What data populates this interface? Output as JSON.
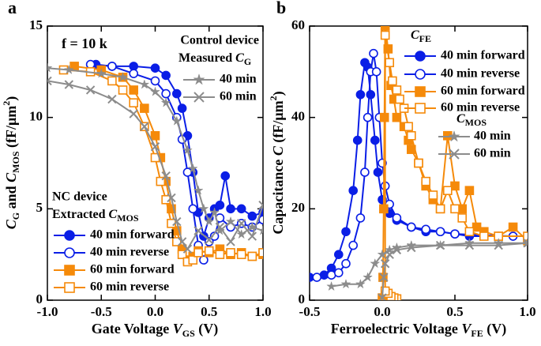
{
  "chart_data": [
    {
      "type": "line",
      "panel_label": "a",
      "x_label": [
        "Gate Voltage ",
        "V",
        "GS",
        " (V)"
      ],
      "y_label": [
        "C",
        "G",
        " and ",
        "C",
        "MOS",
        " (fF/μm",
        "2",
        ")"
      ],
      "annotation": "f = 10 k",
      "xlim": [
        -1.0,
        1.0
      ],
      "ylim": [
        0,
        15
      ],
      "xticks": [
        {
          "value": -1.0,
          "label": "-1.0"
        },
        -0.5,
        {
          "value": 0.0,
          "label": "0.0"
        },
        0.5,
        {
          "value": 1.0,
          "label": "1.0"
        }
      ],
      "yticks": [
        0,
        5,
        10,
        15
      ],
      "groups": [
        {
          "heading": [
            "NC device"
          ],
          "subheading": [
            "Extracted ",
            "C",
            "MOS"
          ],
          "series": [
            {
              "name": "40 min forward",
              "color": "#0a1ee6",
              "marker": "circle",
              "filled": true,
              "x": [
                -0.55,
                -0.4,
                -0.2,
                0.0,
                0.1,
                0.2,
                0.25,
                0.3,
                0.35,
                0.4,
                0.45,
                0.5,
                0.55,
                0.6,
                0.65,
                0.7,
                0.8,
                0.9,
                1.0
              ],
              "values": [
                12.9,
                12.8,
                12.8,
                12.7,
                12.3,
                11.3,
                10.5,
                9.0,
                7.0,
                4.8,
                3.5,
                4.5,
                5.0,
                5.2,
                6.8,
                5.0,
                5.0,
                4.6,
                4.8
              ]
            },
            {
              "name": "40 min reverse",
              "color": "#0a1ee6",
              "marker": "circle",
              "filled": false,
              "x": [
                -0.6,
                -0.4,
                -0.2,
                0.0,
                0.1,
                0.2,
                0.25,
                0.3,
                0.35,
                0.4,
                0.45,
                0.5,
                0.55,
                0.6,
                0.7,
                0.8,
                0.9,
                1.0
              ],
              "values": [
                12.9,
                12.8,
                12.4,
                12.0,
                11.3,
                10.0,
                8.8,
                7.0,
                5.0,
                3.0,
                2.2,
                3.2,
                3.5,
                4.5,
                4.0,
                4.2,
                4.0,
                4.4
              ]
            },
            {
              "name": "60 min forward",
              "color": "#f58a0a",
              "marker": "square",
              "filled": true,
              "x": [
                -0.75,
                -0.5,
                -0.3,
                -0.2,
                -0.1,
                0.0,
                0.05,
                0.1,
                0.15,
                0.2,
                0.25,
                0.3,
                0.35,
                0.4,
                0.5,
                0.6,
                0.7,
                0.8,
                0.9,
                1.0
              ],
              "values": [
                12.8,
                12.6,
                12.2,
                11.5,
                10.5,
                9.0,
                7.8,
                6.5,
                5.0,
                3.8,
                2.8,
                2.2,
                2.4,
                2.7,
                2.6,
                2.8,
                2.5,
                2.6,
                2.4,
                2.5
              ]
            },
            {
              "name": "60 min reverse",
              "color": "#f58a0a",
              "marker": "square",
              "filled": false,
              "x": [
                -0.85,
                -0.6,
                -0.4,
                -0.3,
                -0.2,
                -0.1,
                0.0,
                0.05,
                0.1,
                0.15,
                0.2,
                0.25,
                0.3,
                0.35,
                0.4,
                0.5,
                0.6,
                0.7,
                0.8,
                0.9,
                1.0
              ],
              "values": [
                12.6,
                12.5,
                12.0,
                11.5,
                10.8,
                9.5,
                7.8,
                6.5,
                5.5,
                4.2,
                3.2,
                2.5,
                2.1,
                2.2,
                2.6,
                2.7,
                2.5,
                2.6,
                2.5,
                2.4,
                2.6
              ]
            }
          ]
        },
        {
          "heading": [
            "Control device"
          ],
          "subheading": [
            "Measured ",
            "C",
            "G"
          ],
          "series": [
            {
              "name": "40 min",
              "color": "#8c8c8c",
              "marker": "star",
              "filled": true,
              "x": [
                -1.0,
                -0.8,
                -0.5,
                -0.3,
                -0.1,
                0.0,
                0.1,
                0.2,
                0.3,
                0.35,
                0.4,
                0.45,
                0.5,
                0.55,
                0.6,
                0.7,
                0.8,
                0.9,
                1.0
              ],
              "values": [
                12.7,
                12.6,
                12.4,
                12.2,
                11.8,
                11.4,
                10.8,
                9.8,
                8.2,
                7.2,
                6.0,
                5.0,
                4.3,
                4.8,
                3.8,
                4.3,
                3.6,
                4.0,
                3.8
              ]
            },
            {
              "name": "60 min",
              "color": "#8c8c8c",
              "marker": "x",
              "filled": false,
              "x": [
                -1.0,
                -0.8,
                -0.6,
                -0.4,
                -0.2,
                -0.1,
                0.0,
                0.1,
                0.15,
                0.2,
                0.25,
                0.3,
                0.4,
                0.5,
                0.6,
                0.7,
                0.8,
                0.9,
                1.0
              ],
              "values": [
                12.0,
                11.8,
                11.5,
                11.0,
                10.2,
                9.5,
                8.4,
                6.8,
                5.6,
                4.3,
                3.2,
                2.8,
                3.8,
                3.3,
                4.0,
                3.2,
                4.2,
                3.5,
                5.2
              ]
            }
          ]
        }
      ]
    },
    {
      "type": "line",
      "panel_label": "b",
      "x_label": [
        "Ferroelectric Voltage ",
        "V",
        "FE",
        " (V)"
      ],
      "y_label": [
        "Capacitance ",
        "C",
        " (fF/μm",
        "2",
        ")"
      ],
      "xlim": [
        -0.5,
        1.0
      ],
      "ylim": [
        0,
        60
      ],
      "xticks": [
        -0.5,
        {
          "value": 0.0,
          "label": "0.0"
        },
        0.5,
        {
          "value": 1.0,
          "label": "1.0"
        }
      ],
      "yticks": [
        0,
        20,
        40,
        60
      ],
      "groups": [
        {
          "heading": [
            "C",
            "FE"
          ],
          "series": [
            {
              "name": "40 min forward",
              "color": "#0a1ee6",
              "marker": "circle",
              "filled": true,
              "x": [
                -0.5,
                -0.4,
                -0.35,
                -0.3,
                -0.25,
                -0.2,
                -0.17,
                -0.15,
                -0.12,
                -0.1,
                -0.08,
                -0.05,
                -0.03,
                0.0,
                0.05,
                0.1,
                0.2,
                0.3,
                0.4,
                0.5,
                0.6,
                0.8,
                1.0
              ],
              "values": [
                5,
                5.5,
                7,
                10,
                15,
                24,
                35,
                45,
                52,
                51,
                45,
                35,
                28,
                22,
                19,
                17.5,
                16,
                15,
                15,
                14.5,
                14,
                14,
                14
              ]
            },
            {
              "name": "40 min reverse",
              "color": "#0a1ee6",
              "marker": "circle",
              "filled": false,
              "x": [
                -0.45,
                -0.35,
                -0.3,
                -0.25,
                -0.2,
                -0.15,
                -0.12,
                -0.1,
                -0.08,
                -0.06,
                -0.04,
                -0.02,
                0.0,
                0.02,
                0.05,
                0.1,
                0.2,
                0.3,
                0.4,
                0.5,
                0.7,
                0.9,
                1.0
              ],
              "values": [
                5,
                5.5,
                6,
                8,
                12,
                18,
                28,
                40,
                50,
                54,
                50,
                40,
                30,
                25,
                21,
                18,
                16,
                15.5,
                15,
                14.5,
                14.2,
                14,
                14
              ]
            },
            {
              "name": "60 min forward",
              "color": "#f58a0a",
              "marker": "square",
              "filled": true,
              "x": [
                0.0,
                0.005,
                0.01,
                0.015,
                0.02,
                0.04,
                0.06,
                0.08,
                0.1,
                0.15,
                0.18,
                0.2,
                0.25,
                0.3,
                0.35,
                0.4,
                0.45,
                0.5,
                0.55,
                0.6,
                0.65,
                0.7,
                0.8,
                0.9,
                1.0
              ],
              "values": [
                0.5,
                5,
                20,
                40,
                60,
                55,
                47,
                44,
                40,
                38,
                35,
                33,
                30,
                25,
                22,
                20,
                36,
                25,
                20,
                24,
                16,
                15,
                14,
                16,
                13
              ]
            },
            {
              "name": "60 min reverse",
              "color": "#f58a0a",
              "marker": "square",
              "filled": false,
              "x": [
                0.1,
                0.08,
                0.06,
                0.04,
                0.02,
                0.02,
                0.05,
                0.07,
                0.1,
                0.12,
                0.15,
                0.18,
                0.2,
                0.25,
                0.3,
                0.35,
                0.4,
                0.45,
                0.5,
                0.55,
                0.6,
                0.7,
                0.8,
                1.0
              ],
              "values": [
                0.3,
                0.5,
                0.8,
                1.5,
                2,
                58,
                52,
                48,
                46,
                44,
                42,
                38,
                36,
                30,
                26,
                23,
                20,
                24,
                20,
                18,
                15,
                14,
                14,
                14
              ]
            }
          ]
        },
        {
          "heading": [
            "C",
            "MOS"
          ],
          "series": [
            {
              "name": "40 min",
              "color": "#8c8c8c",
              "marker": "star",
              "filled": true,
              "x": [
                -0.35,
                -0.25,
                -0.15,
                -0.1,
                -0.05,
                0.0,
                0.05,
                0.1,
                0.2,
                0.4,
                0.6,
                0.8,
                1.0
              ],
              "values": [
                3,
                3.5,
                3.5,
                5,
                8,
                10,
                11,
                11.5,
                12,
                12,
                12.5,
                12.5,
                12.5
              ]
            },
            {
              "name": "60 min",
              "color": "#8c8c8c",
              "marker": "x",
              "filled": false,
              "x": [
                0.0,
                0.01,
                0.02,
                0.05,
                0.1,
                0.2,
                0.4,
                0.6,
                0.8,
                1.0
              ],
              "values": [
                0.5,
                5,
                8,
                10,
                11,
                11.5,
                12,
                12,
                12,
                12.5
              ]
            }
          ]
        }
      ]
    }
  ]
}
